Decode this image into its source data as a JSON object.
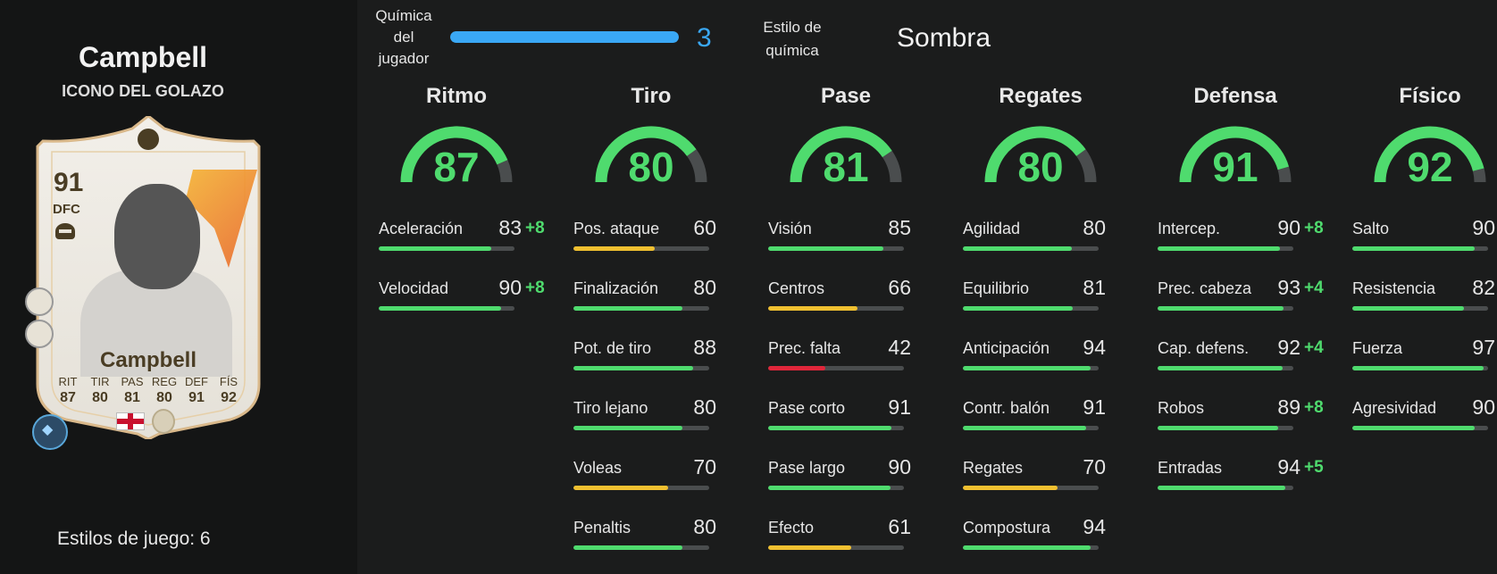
{
  "player": {
    "name": "Campbell",
    "type": "ICONO DEL GOLAZO",
    "card": {
      "rating": "91",
      "position": "DFC",
      "name": "Campbell",
      "mini_stats": [
        {
          "label": "RIT",
          "value": "87"
        },
        {
          "label": "TIR",
          "value": "80"
        },
        {
          "label": "PAS",
          "value": "81"
        },
        {
          "label": "REG",
          "value": "80"
        },
        {
          "label": "DEF",
          "value": "91"
        },
        {
          "label": "FÍS",
          "value": "92"
        }
      ]
    },
    "playstyles_label": "Estilos de juego: 6"
  },
  "chemistry": {
    "label_lines": [
      "Química",
      "del",
      "jugador"
    ],
    "value": "3",
    "fill_fraction": 1.0,
    "style_label_lines": [
      "Estilo de",
      "química"
    ],
    "style_value": "Sombra"
  },
  "colors": {
    "green": "#4fdb6e",
    "yellow": "#f0c030",
    "red": "#e0263a",
    "blue": "#3aa8f5"
  },
  "groups": [
    {
      "title": "Ritmo",
      "value": "87",
      "stats": [
        {
          "name": "Aceleración",
          "value": "83",
          "boost": "+8"
        },
        {
          "name": "Velocidad",
          "value": "90",
          "boost": "+8"
        }
      ]
    },
    {
      "title": "Tiro",
      "value": "80",
      "stats": [
        {
          "name": "Pos. ataque",
          "value": "60",
          "boost": ""
        },
        {
          "name": "Finalización",
          "value": "80",
          "boost": ""
        },
        {
          "name": "Pot. de tiro",
          "value": "88",
          "boost": ""
        },
        {
          "name": "Tiro lejano",
          "value": "80",
          "boost": ""
        },
        {
          "name": "Voleas",
          "value": "70",
          "boost": ""
        },
        {
          "name": "Penaltis",
          "value": "80",
          "boost": ""
        }
      ]
    },
    {
      "title": "Pase",
      "value": "81",
      "stats": [
        {
          "name": "Visión",
          "value": "85",
          "boost": ""
        },
        {
          "name": "Centros",
          "value": "66",
          "boost": ""
        },
        {
          "name": "Prec. falta",
          "value": "42",
          "boost": ""
        },
        {
          "name": "Pase corto",
          "value": "91",
          "boost": ""
        },
        {
          "name": "Pase largo",
          "value": "90",
          "boost": ""
        },
        {
          "name": "Efecto",
          "value": "61",
          "boost": ""
        }
      ]
    },
    {
      "title": "Regates",
      "value": "80",
      "stats": [
        {
          "name": "Agilidad",
          "value": "80",
          "boost": ""
        },
        {
          "name": "Equilibrio",
          "value": "81",
          "boost": ""
        },
        {
          "name": "Anticipación",
          "value": "94",
          "boost": ""
        },
        {
          "name": "Contr. balón",
          "value": "91",
          "boost": ""
        },
        {
          "name": "Regates",
          "value": "70",
          "boost": ""
        },
        {
          "name": "Compostura",
          "value": "94",
          "boost": ""
        }
      ]
    },
    {
      "title": "Defensa",
      "value": "91",
      "stats": [
        {
          "name": "Intercep.",
          "value": "90",
          "boost": "+8"
        },
        {
          "name": "Prec. cabeza",
          "value": "93",
          "boost": "+4"
        },
        {
          "name": "Cap. defens.",
          "value": "92",
          "boost": "+4"
        },
        {
          "name": "Robos",
          "value": "89",
          "boost": "+8"
        },
        {
          "name": "Entradas",
          "value": "94",
          "boost": "+5"
        }
      ]
    },
    {
      "title": "Físico",
      "value": "92",
      "stats": [
        {
          "name": "Salto",
          "value": "90",
          "boost": ""
        },
        {
          "name": "Resistencia",
          "value": "82",
          "boost": ""
        },
        {
          "name": "Fuerza",
          "value": "97",
          "boost": ""
        },
        {
          "name": "Agresividad",
          "value": "90",
          "boost": ""
        }
      ]
    }
  ]
}
